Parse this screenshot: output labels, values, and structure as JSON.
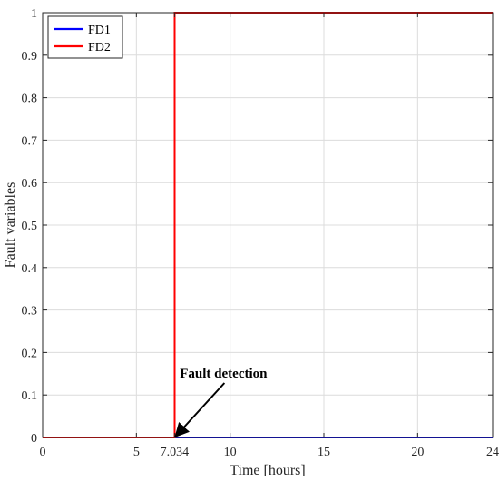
{
  "chart_data": {
    "type": "line",
    "xlabel": "Time [hours]",
    "ylabel": "Fault variables",
    "xlim": [
      0,
      24
    ],
    "ylim": [
      0,
      1
    ],
    "xticks": [
      {
        "value": 0,
        "label": "0"
      },
      {
        "value": 5,
        "label": "5"
      },
      {
        "value": 7.034,
        "label": "7.034"
      },
      {
        "value": 10,
        "label": "10"
      },
      {
        "value": 15,
        "label": "15"
      },
      {
        "value": 20,
        "label": "20"
      },
      {
        "value": 24,
        "label": "24"
      }
    ],
    "yticks": [
      {
        "value": 0,
        "label": "0"
      },
      {
        "value": 0.1,
        "label": "0.1"
      },
      {
        "value": 0.2,
        "label": "0.2"
      },
      {
        "value": 0.3,
        "label": "0.3"
      },
      {
        "value": 0.4,
        "label": "0.4"
      },
      {
        "value": 0.5,
        "label": "0.5"
      },
      {
        "value": 0.6,
        "label": "0.6"
      },
      {
        "value": 0.7,
        "label": "0.7"
      },
      {
        "value": 0.8,
        "label": "0.8"
      },
      {
        "value": 0.9,
        "label": "0.9"
      },
      {
        "value": 1,
        "label": "1"
      }
    ],
    "grid": true,
    "legend_placement": "top-left",
    "series": [
      {
        "name": "FD1",
        "color": "#0000ff",
        "x": [
          0,
          24
        ],
        "y": [
          0,
          0
        ]
      },
      {
        "name": "FD2",
        "color": "#ff0000",
        "x": [
          0,
          7.034,
          7.034,
          24
        ],
        "y": [
          0,
          0,
          1,
          1
        ]
      }
    ],
    "annotations": [
      {
        "text": "Fault detection",
        "x": 7.034,
        "y": 0
      }
    ]
  }
}
